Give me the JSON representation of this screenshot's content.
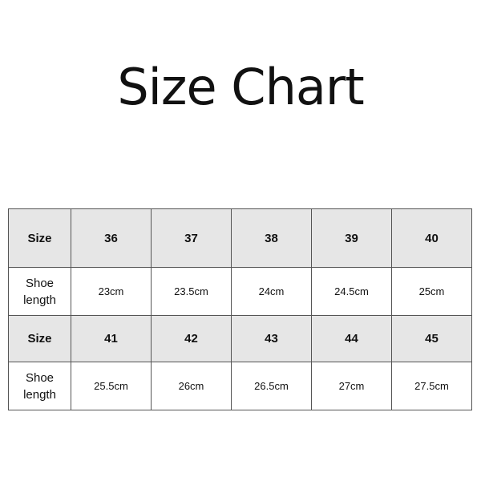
{
  "title": "Size Chart",
  "table": {
    "blocks": [
      {
        "size_label": "Size",
        "length_label_1": "Shoe",
        "length_label_2": "length",
        "sizes": [
          "36",
          "37",
          "38",
          "39",
          "40"
        ],
        "lengths": [
          "23cm",
          "23.5cm",
          "24cm",
          "24.5cm",
          "25cm"
        ]
      },
      {
        "size_label": "Size",
        "length_label_1": "Shoe",
        "length_label_2": "length",
        "sizes": [
          "41",
          "42",
          "43",
          "44",
          "45"
        ],
        "lengths": [
          "25.5cm",
          "26cm",
          "26.5cm",
          "27cm",
          "27.5cm"
        ]
      }
    ]
  },
  "colors": {
    "header_bg": "#e6e6e6",
    "border": "#555555"
  }
}
